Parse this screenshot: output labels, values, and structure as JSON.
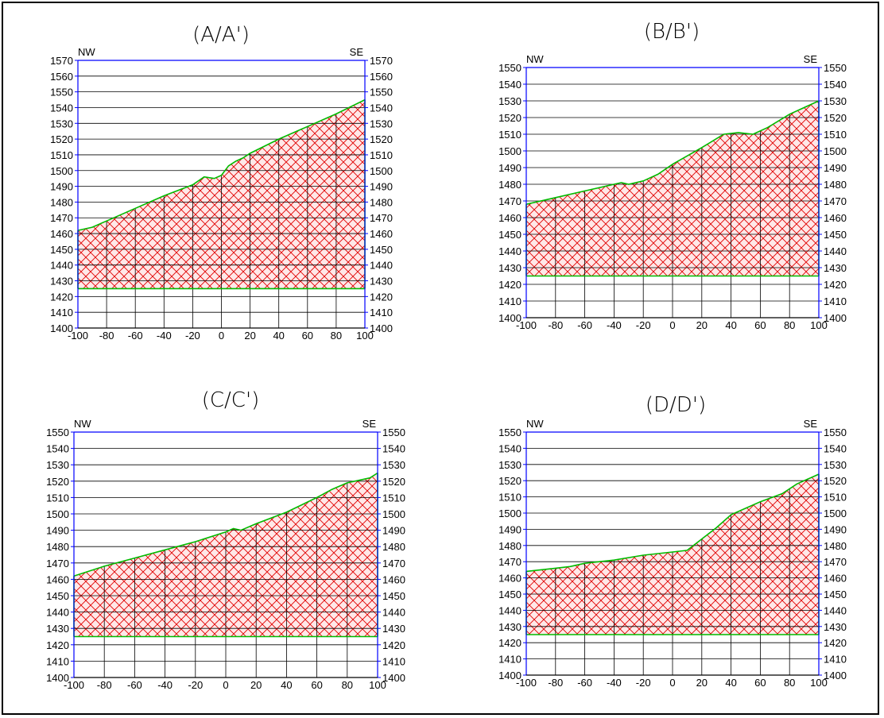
{
  "chart_data": [
    {
      "type": "area",
      "title": "(A/A')",
      "left_label": "NW",
      "right_label": "SE",
      "xlim": [
        -100,
        100
      ],
      "ylim": [
        1400,
        1570
      ],
      "x_ticks": [
        -100,
        -80,
        -60,
        -40,
        -20,
        0,
        20,
        40,
        60,
        80,
        100
      ],
      "y_ticks": [
        1400,
        1410,
        1420,
        1430,
        1440,
        1450,
        1460,
        1470,
        1480,
        1490,
        1500,
        1510,
        1520,
        1530,
        1540,
        1550,
        1560,
        1570
      ],
      "base_elevation": 1425,
      "profile": {
        "x": [
          -100,
          -90,
          -80,
          -60,
          -40,
          -20,
          -12,
          -5,
          0,
          5,
          10,
          15,
          20,
          40,
          60,
          80,
          100
        ],
        "y": [
          1462,
          1464,
          1468,
          1476,
          1484,
          1491,
          1496,
          1495,
          1497,
          1503,
          1506,
          1508,
          1511,
          1520,
          1528,
          1536,
          1545
        ]
      }
    },
    {
      "type": "area",
      "title": "(B/B')",
      "left_label": "NW",
      "right_label": "SE",
      "xlim": [
        -100,
        100
      ],
      "ylim": [
        1400,
        1550
      ],
      "x_ticks": [
        -100,
        -80,
        -60,
        -40,
        -20,
        0,
        20,
        40,
        60,
        80,
        100
      ],
      "y_ticks": [
        1400,
        1410,
        1420,
        1430,
        1440,
        1450,
        1460,
        1470,
        1480,
        1490,
        1500,
        1510,
        1520,
        1530,
        1540,
        1550
      ],
      "base_elevation": 1425,
      "profile": {
        "x": [
          -100,
          -80,
          -60,
          -40,
          -35,
          -30,
          -20,
          -10,
          0,
          20,
          35,
          45,
          55,
          65,
          80,
          100
        ],
        "y": [
          1468,
          1472,
          1476,
          1480,
          1481,
          1480,
          1482,
          1486,
          1492,
          1502,
          1510,
          1511,
          1510,
          1514,
          1522,
          1530
        ]
      }
    },
    {
      "type": "area",
      "title": "(C/C')",
      "left_label": "NW",
      "right_label": "SE",
      "xlim": [
        -100,
        100
      ],
      "ylim": [
        1400,
        1550
      ],
      "x_ticks": [
        -100,
        -80,
        -60,
        -40,
        -20,
        0,
        20,
        40,
        60,
        80,
        100
      ],
      "y_ticks": [
        1400,
        1410,
        1420,
        1430,
        1440,
        1450,
        1460,
        1470,
        1480,
        1490,
        1500,
        1510,
        1520,
        1530,
        1540,
        1550
      ],
      "base_elevation": 1425,
      "profile": {
        "x": [
          -100,
          -80,
          -60,
          -40,
          -20,
          0,
          5,
          10,
          20,
          40,
          60,
          70,
          80,
          95,
          100
        ],
        "y": [
          1462,
          1468,
          1473,
          1478,
          1483,
          1489,
          1491,
          1490,
          1494,
          1501,
          1510,
          1515,
          1519,
          1522,
          1525
        ]
      }
    },
    {
      "type": "area",
      "title": "(D/D')",
      "left_label": "NW",
      "right_label": "SE",
      "xlim": [
        -100,
        100
      ],
      "ylim": [
        1400,
        1550
      ],
      "x_ticks": [
        -100,
        -80,
        -60,
        -40,
        -20,
        0,
        20,
        40,
        60,
        80,
        100
      ],
      "y_ticks": [
        1400,
        1410,
        1420,
        1430,
        1440,
        1450,
        1460,
        1470,
        1480,
        1490,
        1500,
        1510,
        1520,
        1530,
        1540,
        1550
      ],
      "base_elevation": 1425,
      "profile": {
        "x": [
          -100,
          -90,
          -80,
          -70,
          -60,
          -40,
          -20,
          0,
          10,
          20,
          30,
          40,
          50,
          60,
          75,
          85,
          95,
          100
        ],
        "y": [
          1464,
          1465,
          1466,
          1467,
          1469,
          1471,
          1474,
          1476,
          1477,
          1484,
          1491,
          1499,
          1503,
          1507,
          1512,
          1518,
          1522,
          1524
        ]
      }
    }
  ],
  "colors": {
    "frame": "#0000ff",
    "fill": "#ff0000",
    "fill_bg": "#ffe0e0",
    "outline": "#00bb00",
    "grid": "#000000",
    "text": "#000000"
  }
}
